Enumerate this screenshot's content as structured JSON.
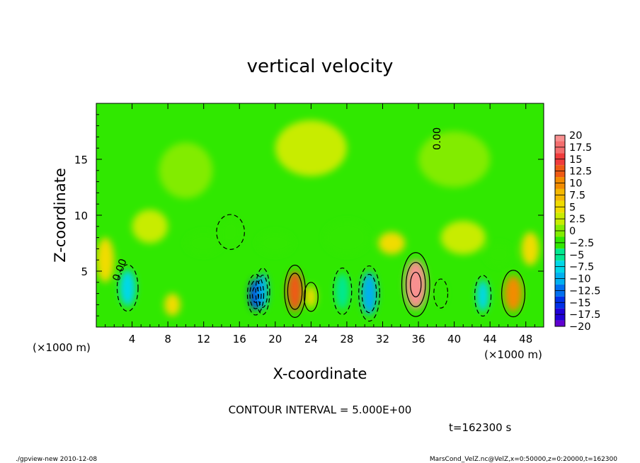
{
  "chart_data": {
    "type": "heatmap",
    "title": "vertical velocity",
    "xlabel": "X-coordinate",
    "ylabel": "Z-coordinate",
    "x_unit_label": "(×1000 m)",
    "xlim": [
      0,
      50
    ],
    "ylim": [
      0,
      20
    ],
    "x_ticks": [
      4,
      8,
      12,
      16,
      20,
      24,
      28,
      32,
      36,
      40,
      44,
      48
    ],
    "x_tick_labels": [
      "4",
      "8",
      "12",
      "16",
      "20",
      "24",
      "28",
      "32",
      "36",
      "40",
      "44",
      "48"
    ],
    "y_ticks": [
      5,
      10,
      15
    ],
    "y_tick_labels": [
      "5",
      "10",
      "15"
    ],
    "colorbar": {
      "min": -20,
      "max": 20,
      "step": 2.5,
      "labels": [
        "20",
        "17.5",
        "15",
        "12.5",
        "10",
        "7.5",
        "5",
        "2.5",
        "0",
        "−2.5",
        "−5",
        "−7.5",
        "−10",
        "−12.5",
        "−15",
        "−17.5",
        "−20"
      ],
      "colors": [
        "#f89090",
        "#f46e6e",
        "#f03c3c",
        "#ee5a14",
        "#f28c00",
        "#f4b800",
        "#f0dc00",
        "#c8ec00",
        "#82ec00",
        "#30e800",
        "#00e890",
        "#00d8e8",
        "#00b0f0",
        "#0070f0",
        "#0030e8",
        "#2000d8",
        "#6000d0"
      ]
    },
    "contour_interval_text": "CONTOUR INTERVAL = 5.000E+00",
    "contour_label": "0.00",
    "cells": [
      {
        "x": 3.5,
        "z": 3.5,
        "value": -9,
        "sx": 0.9,
        "sz": 1.6
      },
      {
        "x": 8.5,
        "z": 2.0,
        "value": 3,
        "sx": 0.9,
        "sz": 1.0
      },
      {
        "x": 17.8,
        "z": 2.9,
        "value": -15,
        "sx": 0.7,
        "sz": 1.4
      },
      {
        "x": 18.6,
        "z": 3.2,
        "value": -10,
        "sx": 0.6,
        "sz": 1.6
      },
      {
        "x": 22.2,
        "z": 3.2,
        "value": 11,
        "sx": 0.9,
        "sz": 1.8
      },
      {
        "x": 24.0,
        "z": 2.7,
        "value": 4,
        "sx": 0.6,
        "sz": 1.0
      },
      {
        "x": 27.5,
        "z": 3.2,
        "value": -6,
        "sx": 0.8,
        "sz": 1.6
      },
      {
        "x": 30.5,
        "z": 3.0,
        "value": -10,
        "sx": 0.9,
        "sz": 1.9
      },
      {
        "x": 35.7,
        "z": 3.8,
        "value": 18,
        "sx": 1.2,
        "sz": 2.2
      },
      {
        "x": 38.5,
        "z": 3.0,
        "value": -4,
        "sx": 0.6,
        "sz": 1.0
      },
      {
        "x": 43.2,
        "z": 2.8,
        "value": -9,
        "sx": 0.7,
        "sz": 1.4
      },
      {
        "x": 46.6,
        "z": 3.0,
        "value": 9,
        "sx": 1.0,
        "sz": 1.6
      },
      {
        "x": 6.0,
        "z": 9.0,
        "value": 2,
        "sx": 2.0,
        "sz": 1.5
      },
      {
        "x": 12.0,
        "z": 7.5,
        "value": -3,
        "sx": 2.0,
        "sz": 1.0
      },
      {
        "x": 15.0,
        "z": 8.5,
        "value": -4,
        "sx": 1.2,
        "sz": 1.2
      },
      {
        "x": 20.0,
        "z": 7.5,
        "value": -3,
        "sx": 2.0,
        "sz": 1.0
      },
      {
        "x": 28.0,
        "z": 8.0,
        "value": -3,
        "sx": 2.5,
        "sz": 1.5
      },
      {
        "x": 33.0,
        "z": 7.5,
        "value": 3,
        "sx": 1.5,
        "sz": 1.0
      },
      {
        "x": 41.0,
        "z": 8.0,
        "value": 2.5,
        "sx": 2.5,
        "sz": 1.5
      },
      {
        "x": 45.0,
        "z": 6.5,
        "value": -3,
        "sx": 1.5,
        "sz": 1.0
      },
      {
        "x": 10.0,
        "z": 14.0,
        "value": -1.5,
        "sx": 3.0,
        "sz": 2.5
      },
      {
        "x": 24.0,
        "z": 16.0,
        "value": 1,
        "sx": 4.0,
        "sz": 2.5
      },
      {
        "x": 40.0,
        "z": 15.0,
        "value": -1.5,
        "sx": 4.0,
        "sz": 2.5
      },
      {
        "x": 1.0,
        "z": 6.0,
        "value": 3,
        "sx": 1.0,
        "sz": 2.0
      },
      {
        "x": 48.5,
        "z": 7.0,
        "value": 3,
        "sx": 1.0,
        "sz": 1.5
      }
    ]
  },
  "info": {
    "time_label": "t=162300 s",
    "footer_left": "./gpview-new   2010-12-08",
    "footer_right": "MarsCond_VelZ.nc@VelZ,x=0:50000,z=0:20000,t=162300"
  }
}
